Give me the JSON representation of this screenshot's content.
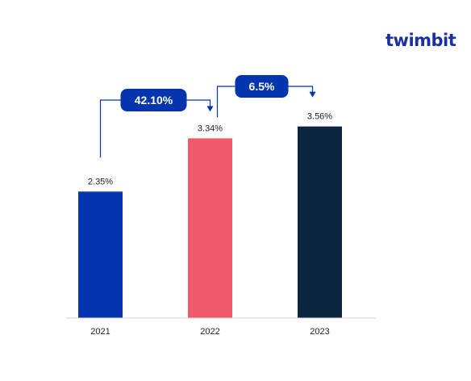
{
  "brand": {
    "name": "twimbit"
  },
  "chart_data": {
    "type": "bar",
    "categories": [
      "2021",
      "2022",
      "2023"
    ],
    "values": [
      2.35,
      3.34,
      3.56
    ],
    "value_labels": [
      "2.35%",
      "3.34%",
      "3.56%"
    ],
    "colors": [
      "#0335ae",
      "#f0596a",
      "#0c2640"
    ],
    "ylim": [
      0,
      4.2
    ],
    "title": "",
    "xlabel": "",
    "ylabel": "",
    "grid": false,
    "legend": "none",
    "annotations": [
      {
        "from": "2021",
        "to": "2022",
        "label": "42.10%",
        "color": "#0335ae"
      },
      {
        "from": "2022",
        "to": "2023",
        "label": "6.5%",
        "color": "#0335ae"
      }
    ]
  }
}
